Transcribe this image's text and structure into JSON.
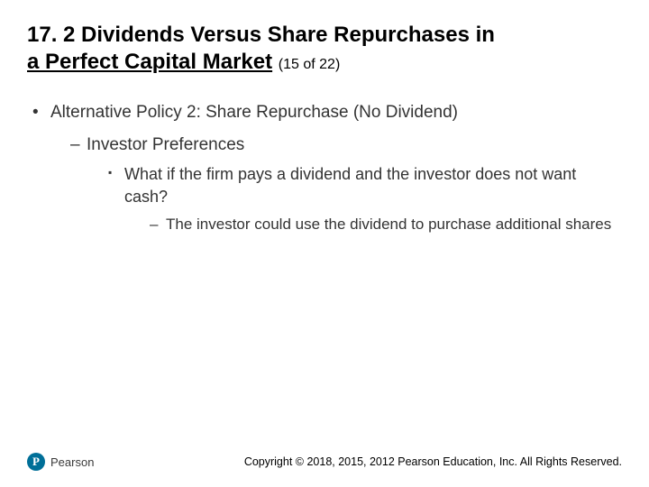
{
  "title": {
    "line1": "17. 2 Dividends Versus Share Repurchases in",
    "line2_underlined": "a Perfect Capital Market",
    "counter": "(15 of 22)",
    "fontsize_main": 24,
    "fontsize_sub": 16,
    "color": "#000000"
  },
  "body": {
    "color": "#333333",
    "lvl1": [
      {
        "text": "Alternative Policy 2: Share Repurchase (No Dividend)",
        "lvl2": [
          {
            "text": "Investor Preferences",
            "lvl3": [
              {
                "text": "What if the firm pays a dividend and the investor does not want cash?",
                "lvl4": [
                  {
                    "text": "The investor could use the dividend to purchase additional shares"
                  }
                ]
              }
            ]
          }
        ]
      }
    ]
  },
  "footer": {
    "logo_mark": "P",
    "logo_text": "Pearson",
    "logo_bg": "#006f98",
    "copyright": "Copyright © 2018, 2015, 2012 Pearson Education, Inc. All Rights Reserved."
  }
}
